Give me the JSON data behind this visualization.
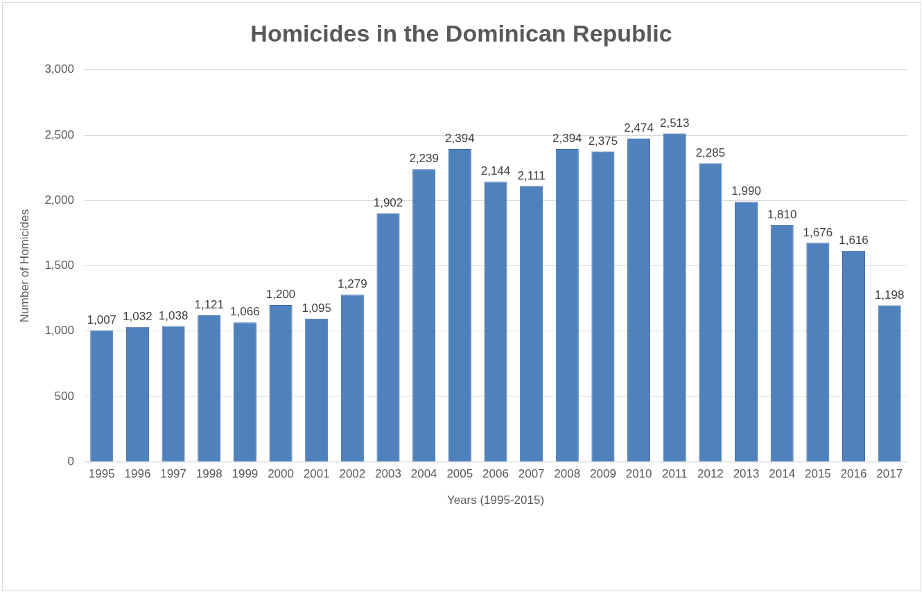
{
  "chart_data": {
    "type": "bar",
    "title": "Homicides in the Dominican Republic",
    "xlabel": "Years (1995-2015)",
    "ylabel": "Number of Homicides",
    "categories": [
      "1995",
      "1996",
      "1997",
      "1998",
      "1999",
      "2000",
      "2001",
      "2002",
      "2003",
      "2004",
      "2005",
      "2006",
      "2007",
      "2008",
      "2009",
      "2010",
      "2011",
      "2012",
      "2013",
      "2014",
      "2015",
      "2016",
      "2017"
    ],
    "values": [
      1007,
      1032,
      1038,
      1121,
      1066,
      1200,
      1095,
      1279,
      1902,
      2239,
      2394,
      2144,
      2111,
      2394,
      2375,
      2474,
      2513,
      2285,
      1990,
      1810,
      1676,
      1616,
      1198
    ],
    "value_labels": [
      "1,007",
      "1,032",
      "1,038",
      "1,121",
      "1,066",
      "1,200",
      "1,095",
      "1,279",
      "1,902",
      "2,239",
      "2,394",
      "2,144",
      "2,111",
      "2,394",
      "2,375",
      "2,474",
      "2,513",
      "2,285",
      "1,990",
      "1,810",
      "1,676",
      "1,616",
      "1,198"
    ],
    "color": "#4f81bd",
    "ylim": [
      0,
      3000
    ],
    "yticks": [
      {
        "value": 0,
        "label": "0"
      },
      {
        "value": 500,
        "label": "500"
      },
      {
        "value": 1000,
        "label": "1,000"
      },
      {
        "value": 1500,
        "label": "1,500"
      },
      {
        "value": 2000,
        "label": "2,000"
      },
      {
        "value": 2500,
        "label": "2,500"
      },
      {
        "value": 3000,
        "label": "3,000"
      }
    ],
    "grid": "y",
    "legend": false
  }
}
